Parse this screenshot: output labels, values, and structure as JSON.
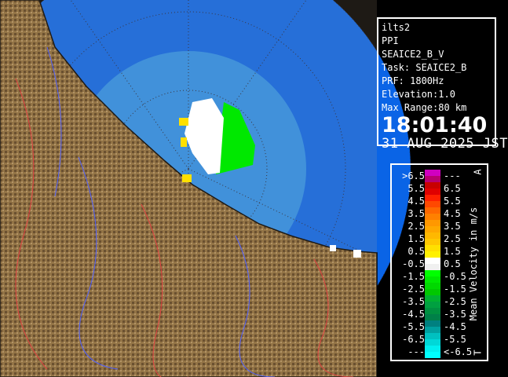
{
  "info": {
    "site": "ilts2",
    "product": "PPI",
    "variable": "SEAICE2_B_V",
    "task": "Task: SEAICE2_B",
    "prf": "PRF: 1800Hz",
    "elevation": "Elevation:1.0",
    "max_range": "Max Range:80 km",
    "time": "18:01:40",
    "date": "31 AUG 2025 JST"
  },
  "legend": {
    "title": "Mean Velocity in m/s",
    "top_marker": "A",
    "bottom_marker": "T",
    "rows": [
      {
        "lo": ">6.5",
        "hi": "---",
        "colors": [
          "#d000c0",
          "#b80070"
        ]
      },
      {
        "lo": "5.5",
        "hi": "6.5",
        "colors": [
          "#c80000",
          "#e00000"
        ]
      },
      {
        "lo": "4.5",
        "hi": "5.5",
        "colors": [
          "#ff2000",
          "#ff4800"
        ]
      },
      {
        "lo": "3.5",
        "hi": "4.5",
        "colors": [
          "#ff6800",
          "#ff8000"
        ]
      },
      {
        "lo": "2.5",
        "hi": "3.5",
        "colors": [
          "#ff9800",
          "#ffa800"
        ]
      },
      {
        "lo": "1.5",
        "hi": "2.5",
        "colors": [
          "#ffb800",
          "#ffc800"
        ]
      },
      {
        "lo": "0.5",
        "hi": "1.5",
        "colors": [
          "#ffe000",
          "#fff000"
        ]
      },
      {
        "lo": "-0.5",
        "hi": "0.5",
        "colors": [
          "#ffffff",
          "#f0f0f0"
        ]
      },
      {
        "lo": "-1.5",
        "hi": "-0.5",
        "colors": [
          "#00ff00",
          "#00e800"
        ]
      },
      {
        "lo": "-2.5",
        "hi": "-1.5",
        "colors": [
          "#00d800",
          "#00c800"
        ]
      },
      {
        "lo": "-3.5",
        "hi": "-2.5",
        "colors": [
          "#00b030",
          "#00a040"
        ]
      },
      {
        "lo": "-4.5",
        "hi": "-3.5",
        "colors": [
          "#009040",
          "#008048"
        ]
      },
      {
        "lo": "-5.5",
        "hi": "-4.5",
        "colors": [
          "#008080",
          "#00a0a0"
        ]
      },
      {
        "lo": "-6.5",
        "hi": "-5.5",
        "colors": [
          "#00c0c0",
          "#00d8d8"
        ]
      },
      {
        "lo": "---",
        "hi": "<-6.5",
        "colors": [
          "#00f0f0",
          "#00ffff"
        ]
      }
    ]
  },
  "colors": {
    "sea_outer": "#0a64e6",
    "sea_inner": "#2a8ce8",
    "land": "#7a5a30"
  }
}
